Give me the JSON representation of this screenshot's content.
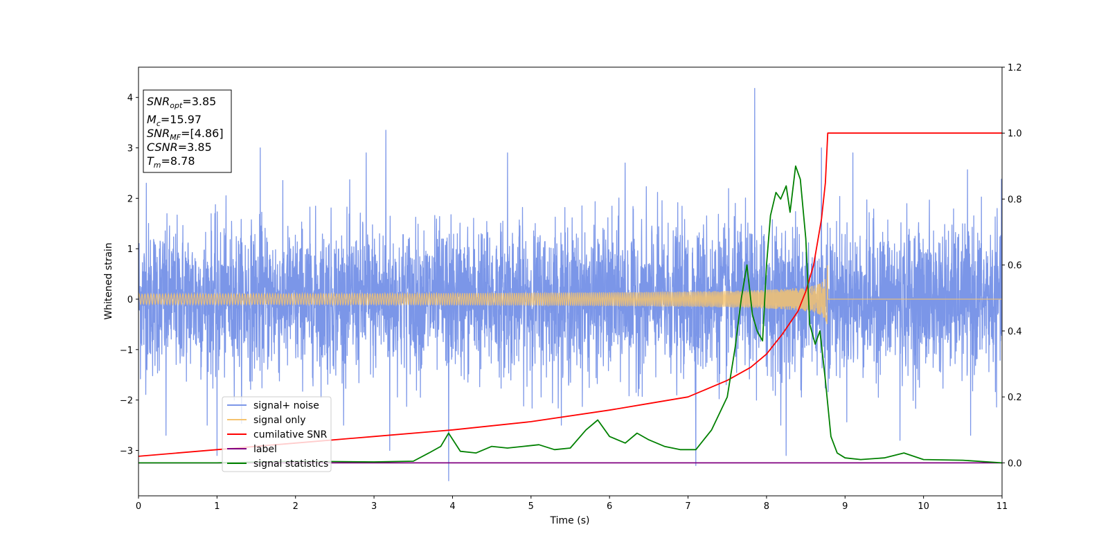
{
  "chart_data": {
    "type": "line",
    "xlabel": "Time (s)",
    "ylabel": "Whitened strain",
    "xlim": [
      0,
      11
    ],
    "ylim": [
      -3.9,
      4.6
    ],
    "y2lim": [
      -0.1,
      1.2
    ],
    "x_ticks": [
      "0",
      "1",
      "2",
      "3",
      "4",
      "5",
      "6",
      "7",
      "8",
      "9",
      "10",
      "11"
    ],
    "y_ticks": [
      "−3",
      "−2",
      "−1",
      "0",
      "1",
      "2",
      "3",
      "4"
    ],
    "y_tick_values": [
      -3,
      -2,
      -1,
      0,
      1,
      2,
      3,
      4
    ],
    "y2_ticks": [
      "0.0",
      "0.2",
      "0.4",
      "0.6",
      "0.8",
      "1.0",
      "1.2"
    ],
    "y2_tick_values": [
      0.0,
      0.2,
      0.4,
      0.6,
      0.8,
      1.0,
      1.2
    ],
    "legend_position": "lower-left",
    "info_box": {
      "snr_opt": {
        "var": "SNR",
        "sub": "opt",
        "value": "=3.85"
      },
      "mc": {
        "var": "M",
        "sub": "c",
        "value": "=15.97"
      },
      "snr_mf": {
        "var": "SNR",
        "sub": "MF",
        "value": "=[4.86]"
      },
      "csnr": {
        "var": "CSNR",
        "value": "=3.85"
      },
      "tm": {
        "var": "T",
        "sub": "m",
        "value": "=8.78"
      }
    },
    "series": [
      {
        "name": "signal+ noise",
        "color": "#7b96e8",
        "axis": "left",
        "description_values": {
          "amplitude_typical": 1.2,
          "max_spike": 4.18,
          "min_spike": -3.6
        },
        "spikes": [
          [
            0.1,
            2.3
          ],
          [
            1.0,
            2.5
          ],
          [
            1.55,
            3.0
          ],
          [
            2.9,
            2.9
          ],
          [
            3.15,
            3.35
          ],
          [
            4.7,
            2.9
          ],
          [
            6.2,
            2.7
          ],
          [
            7.85,
            4.18
          ],
          [
            8.7,
            3.0
          ],
          [
            9.1,
            2.9
          ],
          [
            3.95,
            -3.6
          ],
          [
            0.35,
            -2.7
          ],
          [
            1.0,
            -3.1
          ],
          [
            3.2,
            -3.0
          ],
          [
            8.25,
            -3.1
          ],
          [
            9.7,
            -2.8
          ],
          [
            10.6,
            -2.7
          ],
          [
            7.1,
            -3.3
          ]
        ]
      },
      {
        "name": "signal only",
        "color": "#f5c36e",
        "axis": "left",
        "chirp_end_time": 8.78,
        "peak_amplitude": 0.7
      },
      {
        "name": "cumilative SNR",
        "color": "#ff0000",
        "axis": "right",
        "x": [
          0,
          1,
          2,
          3,
          4,
          5,
          6,
          6.5,
          7,
          7.5,
          7.8,
          8.0,
          8.2,
          8.4,
          8.5,
          8.6,
          8.7,
          8.75,
          8.78,
          11
        ],
        "y": [
          0.02,
          0.04,
          0.06,
          0.08,
          0.1,
          0.125,
          0.16,
          0.18,
          0.2,
          0.25,
          0.29,
          0.33,
          0.39,
          0.46,
          0.52,
          0.6,
          0.74,
          0.85,
          1.0,
          1.0
        ]
      },
      {
        "name": "label",
        "color": "#800080",
        "axis": "right",
        "x": [
          0,
          11
        ],
        "y": [
          0.0,
          0.0
        ]
      },
      {
        "name": "signal statistics",
        "color": "#008000",
        "axis": "right",
        "x": [
          0,
          1,
          2,
          3,
          3.5,
          3.7,
          3.85,
          3.95,
          4.1,
          4.3,
          4.5,
          4.7,
          4.9,
          5.1,
          5.3,
          5.5,
          5.7,
          5.85,
          6.0,
          6.2,
          6.35,
          6.5,
          6.7,
          6.9,
          7.1,
          7.3,
          7.5,
          7.6,
          7.68,
          7.75,
          7.82,
          7.88,
          7.95,
          8.0,
          8.05,
          8.12,
          8.18,
          8.25,
          8.3,
          8.37,
          8.43,
          8.5,
          8.55,
          8.62,
          8.68,
          8.75,
          8.82,
          8.9,
          9.0,
          9.2,
          9.5,
          9.75,
          10.0,
          10.5,
          11.0
        ],
        "y": [
          0.0,
          0.0,
          0.005,
          0.003,
          0.005,
          0.03,
          0.05,
          0.09,
          0.035,
          0.03,
          0.05,
          0.045,
          0.05,
          0.055,
          0.04,
          0.045,
          0.1,
          0.13,
          0.08,
          0.06,
          0.09,
          0.07,
          0.05,
          0.04,
          0.04,
          0.1,
          0.2,
          0.35,
          0.5,
          0.6,
          0.45,
          0.4,
          0.37,
          0.6,
          0.75,
          0.82,
          0.8,
          0.84,
          0.76,
          0.9,
          0.86,
          0.68,
          0.42,
          0.36,
          0.4,
          0.25,
          0.08,
          0.03,
          0.015,
          0.01,
          0.015,
          0.03,
          0.01,
          0.008,
          0.0
        ]
      }
    ]
  }
}
